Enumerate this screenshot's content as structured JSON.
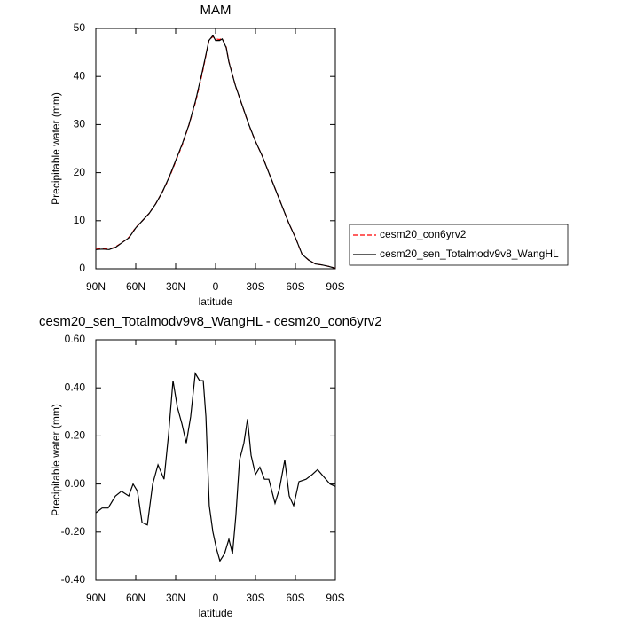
{
  "chart_data": [
    {
      "type": "line",
      "title": "MAM",
      "xlabel": "latitude",
      "ylabel": "Precipitable water (mm)",
      "x": [
        90,
        85,
        80,
        75,
        70,
        65,
        60,
        55,
        50,
        45,
        40,
        35,
        30,
        25,
        20,
        15,
        10,
        5,
        2,
        0,
        -3,
        -5,
        -8,
        -10,
        -15,
        -20,
        -25,
        -30,
        -35,
        -40,
        -45,
        -50,
        -55,
        -60,
        -65,
        -70,
        -75,
        -80,
        -85,
        -90
      ],
      "series": [
        {
          "name": "cesm20_con6yrv2",
          "color": "#ff0000",
          "dash": true,
          "values": [
            4.1,
            4.2,
            4.1,
            4.6,
            5.5,
            6.6,
            8.6,
            10,
            11.5,
            13.5,
            16,
            18.8,
            22.3,
            25.8,
            29.9,
            34.7,
            40.6,
            47.5,
            48.3,
            47.8,
            47.7,
            47.9,
            46.1,
            43.1,
            38,
            34,
            29.9,
            26.5,
            23.5,
            20,
            16.5,
            13,
            9.5,
            6.5,
            3,
            1.8,
            1,
            0.8,
            0.5,
            0.1
          ]
        },
        {
          "name": "cesm20_sen_Totalmodv9v8_WangHL",
          "color": "#000000",
          "dash": false,
          "values": [
            4.0,
            4.1,
            4.0,
            4.5,
            5.5,
            6.5,
            8.5,
            10,
            11.5,
            13.5,
            16,
            19,
            22.5,
            26,
            30,
            35,
            41,
            47.5,
            48.5,
            47.5,
            47.5,
            47.8,
            46,
            43,
            38,
            34,
            30,
            26.5,
            23.5,
            20,
            16.5,
            13,
            9.5,
            6.5,
            3,
            1.8,
            1,
            0.8,
            0.5,
            0.1
          ]
        }
      ],
      "xlim": [
        90,
        -90
      ],
      "xticks": [
        {
          "value": 90,
          "label": "90N"
        },
        {
          "value": 60,
          "label": "60N"
        },
        {
          "value": 30,
          "label": "30N"
        },
        0,
        {
          "value": -30,
          "label": "30S"
        },
        {
          "value": -60,
          "label": "60S"
        },
        {
          "value": -90,
          "label": "90S"
        }
      ],
      "ylim": [
        0,
        50
      ],
      "yticks": [
        0,
        10,
        20,
        30,
        40,
        50
      ],
      "legend": "right"
    },
    {
      "type": "line",
      "title": "cesm20_sen_Totalmodv9v8_WangHL - cesm20_con6yrv2",
      "xlabel": "latitude",
      "ylabel": "Precipitable water (mm)",
      "x": [
        90,
        85.3,
        80.7,
        75.3,
        70.7,
        65.3,
        62,
        58.7,
        55.3,
        51.3,
        47.3,
        43.3,
        38.7,
        35.3,
        32,
        28.7,
        25.3,
        22,
        18.7,
        15.3,
        12,
        9.3,
        7.3,
        4.7,
        2,
        -0.7,
        -3.3,
        -6.7,
        -10,
        -12.7,
        -15.3,
        -18,
        -21.3,
        -24,
        -26.7,
        -30,
        -33.3,
        -36.7,
        -40,
        -44.7,
        -48,
        -52,
        -55.3,
        -58.7,
        -62.7,
        -68,
        -72.7,
        -76.7,
        -81.3,
        -86,
        -90
      ],
      "series": [
        {
          "name": "cesm20_sen_Totalmodv9v8_WangHL - cesm20_con6yrv2",
          "color": "#000000",
          "dash": false,
          "values": [
            -0.12,
            -0.1,
            -0.1,
            -0.05,
            -0.03,
            -0.05,
            0,
            -0.03,
            -0.16,
            -0.17,
            0,
            0.08,
            0.02,
            0.21,
            0.43,
            0.32,
            0.25,
            0.17,
            0.28,
            0.46,
            0.43,
            0.43,
            0.28,
            -0.09,
            -0.2,
            -0.27,
            -0.32,
            -0.29,
            -0.23,
            -0.29,
            -0.13,
            0.1,
            0.17,
            0.27,
            0.12,
            0.04,
            0.07,
            0.02,
            0.02,
            -0.08,
            -0.02,
            0.1,
            -0.05,
            -0.09,
            0.01,
            0.02,
            0.04,
            0.06,
            0.03,
            0,
            -0.01
          ]
        }
      ],
      "xlim": [
        90,
        -90
      ],
      "xticks": [
        {
          "value": 90,
          "label": "90N"
        },
        {
          "value": 60,
          "label": "60N"
        },
        {
          "value": 30,
          "label": "30N"
        },
        0,
        {
          "value": -30,
          "label": "30S"
        },
        {
          "value": -60,
          "label": "60S"
        },
        {
          "value": -90,
          "label": "90S"
        }
      ],
      "ylim": [
        -0.4,
        0.6
      ],
      "yticks": [
        {
          "value": -0.4,
          "label": "-0.40"
        },
        {
          "value": -0.2,
          "label": "-0.20"
        },
        {
          "value": 0,
          "label": "0.00"
        },
        {
          "value": 0.2,
          "label": "0.20"
        },
        {
          "value": 0.4,
          "label": "0.40"
        },
        {
          "value": 0.6,
          "label": "0.60"
        }
      ]
    }
  ]
}
